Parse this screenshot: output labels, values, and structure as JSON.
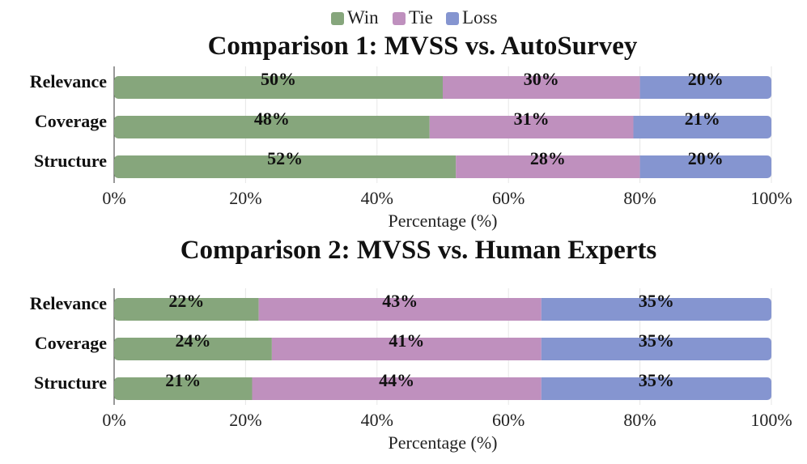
{
  "legend": {
    "items": [
      {
        "label": "Win",
        "color": "#86a67c"
      },
      {
        "label": "Tie",
        "color": "#bf90be"
      },
      {
        "label": "Loss",
        "color": "#8595d0"
      }
    ]
  },
  "chart_data": [
    {
      "type": "bar",
      "orientation": "horizontal",
      "stacked": true,
      "title": "Comparison 1: MVSS vs. AutoSurvey",
      "xlabel": "Percentage (%)",
      "ylabel": "",
      "xlim": [
        0,
        100
      ],
      "x_ticks": [
        "0%",
        "20%",
        "40%",
        "60%",
        "80%",
        "100%"
      ],
      "categories": [
        "Relevance",
        "Coverage",
        "Structure"
      ],
      "series": [
        {
          "name": "Win",
          "color": "#86a67c",
          "values": [
            50,
            48,
            52
          ],
          "labels": [
            "50%",
            "48%",
            "52%"
          ]
        },
        {
          "name": "Tie",
          "color": "#bf90be",
          "values": [
            30,
            31,
            28
          ],
          "labels": [
            "30%",
            "31%",
            "28%"
          ]
        },
        {
          "name": "Loss",
          "color": "#8595d0",
          "values": [
            20,
            21,
            20
          ],
          "labels": [
            "20%",
            "21%",
            "20%"
          ]
        }
      ],
      "grid": true
    },
    {
      "type": "bar",
      "orientation": "horizontal",
      "stacked": true,
      "title": "Comparison 2: MVSS vs. Human Experts",
      "xlabel": "Percentage (%)",
      "ylabel": "",
      "xlim": [
        0,
        100
      ],
      "x_ticks": [
        "0%",
        "20%",
        "40%",
        "60%",
        "80%",
        "100%"
      ],
      "categories": [
        "Relevance",
        "Coverage",
        "Structure"
      ],
      "series": [
        {
          "name": "Win",
          "color": "#86a67c",
          "values": [
            22,
            24,
            21
          ],
          "labels": [
            "22%",
            "24%",
            "21%"
          ]
        },
        {
          "name": "Tie",
          "color": "#bf90be",
          "values": [
            43,
            41,
            44
          ],
          "labels": [
            "43%",
            "41%",
            "44%"
          ]
        },
        {
          "name": "Loss",
          "color": "#8595d0",
          "values": [
            35,
            35,
            35
          ],
          "labels": [
            "35%",
            "35%",
            "35%"
          ]
        }
      ],
      "grid": true
    }
  ]
}
